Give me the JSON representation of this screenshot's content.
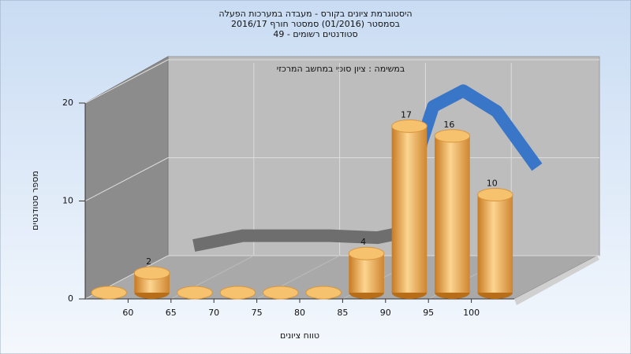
{
  "chart_data": {
    "type": "histogram",
    "title": "היסטוגרמת ציונים בקורס - מעבדה במערכות הפעלה",
    "subtitle": "בסמסטר  (01/2016)  סמסטר חורף 2016/17",
    "subtitle2": "סטודנטים רשומים - 49",
    "annotation": "במשימה : ציון סופי במחשב המרכזי",
    "x_label": "טווח ציונים",
    "y_label": "מספר סטודנטים",
    "bins": [
      55,
      60,
      65,
      70,
      75,
      80,
      85,
      90,
      95,
      100,
      105
    ],
    "counts": [
      0,
      2,
      0,
      0,
      0,
      0,
      4,
      17,
      16,
      10
    ],
    "color": "#e8a040",
    "xlim": [
      55,
      105
    ],
    "xticks": [
      60,
      65,
      70,
      75,
      80,
      85,
      90,
      95,
      100
    ],
    "ylim": [
      0,
      20
    ],
    "yticks": [
      0,
      10,
      20
    ],
    "grid": true,
    "curve": [
      {
        "color": "#6e6e6e",
        "x": [
          59.2,
          64.9,
          75.1,
          80.6,
          84
        ],
        "values": [
          1.6,
          2.6,
          2.6,
          2.4,
          3
        ]
      },
      {
        "color": "#3a76c8",
        "x": [
          84,
          85.7,
          87.1,
          90.6,
          94.5,
          99.2
        ],
        "values": [
          3,
          12,
          15.8,
          17.4,
          15.3,
          9.6
        ]
      }
    ]
  }
}
